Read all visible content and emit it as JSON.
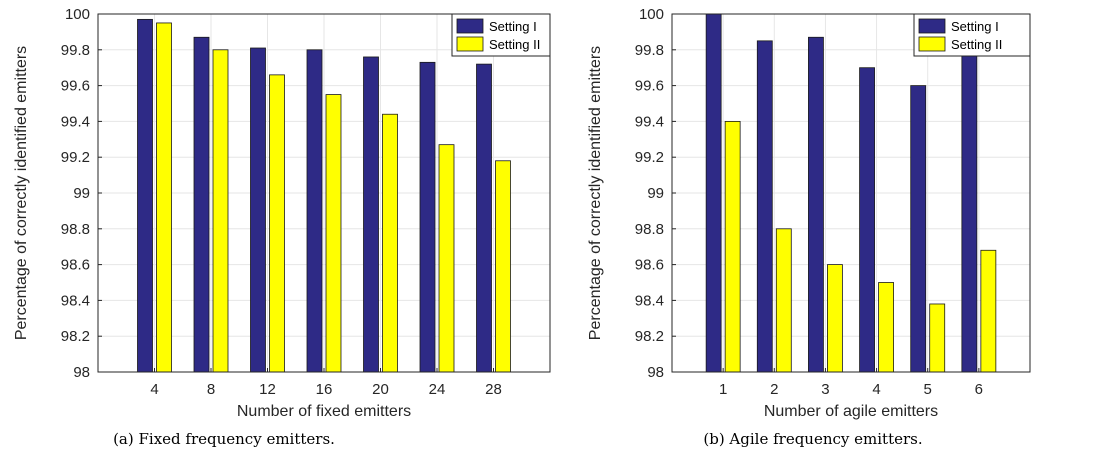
{
  "colors": {
    "setting_1": "#2e2a86",
    "setting_2": "#ffff00",
    "grid": "#e6e6e6",
    "axis": "#262626"
  },
  "chart_data": [
    {
      "type": "bar",
      "caption": "(a) Fixed frequency emitters.",
      "xlabel": "Number of fixed emitters",
      "ylabel": "Percentage of correctly identified emitters",
      "ylim": [
        98,
        100
      ],
      "yticks": [
        "98",
        "98.2",
        "98.4",
        "98.6",
        "98.8",
        "99",
        "99.2",
        "99.4",
        "99.6",
        "99.8",
        "100"
      ],
      "categories": [
        "4",
        "8",
        "12",
        "16",
        "20",
        "24",
        "28"
      ],
      "grid": true,
      "legend_position": "top-right",
      "series": [
        {
          "name": "Setting I",
          "values": [
            99.97,
            99.87,
            99.81,
            99.8,
            99.76,
            99.73,
            99.72
          ]
        },
        {
          "name": "Setting II",
          "values": [
            99.95,
            99.8,
            99.66,
            99.55,
            99.44,
            99.27,
            99.18
          ]
        }
      ]
    },
    {
      "type": "bar",
      "caption": "(b) Agile frequency emitters.",
      "xlabel": "Number of agile emitters",
      "ylabel": "Percentage of correctly identified emitters",
      "ylim": [
        98,
        100
      ],
      "yticks": [
        "98",
        "98.2",
        "98.4",
        "98.6",
        "98.8",
        "99",
        "99.2",
        "99.4",
        "99.6",
        "99.8",
        "100"
      ],
      "categories": [
        "1",
        "2",
        "3",
        "4",
        "5",
        "6"
      ],
      "grid": true,
      "legend_position": "top-right",
      "series": [
        {
          "name": "Setting I",
          "values": [
            100.0,
            99.85,
            99.87,
            99.7,
            99.6,
            99.87
          ]
        },
        {
          "name": "Setting II",
          "values": [
            99.4,
            98.8,
            98.6,
            98.5,
            98.38,
            98.68
          ]
        }
      ]
    }
  ]
}
